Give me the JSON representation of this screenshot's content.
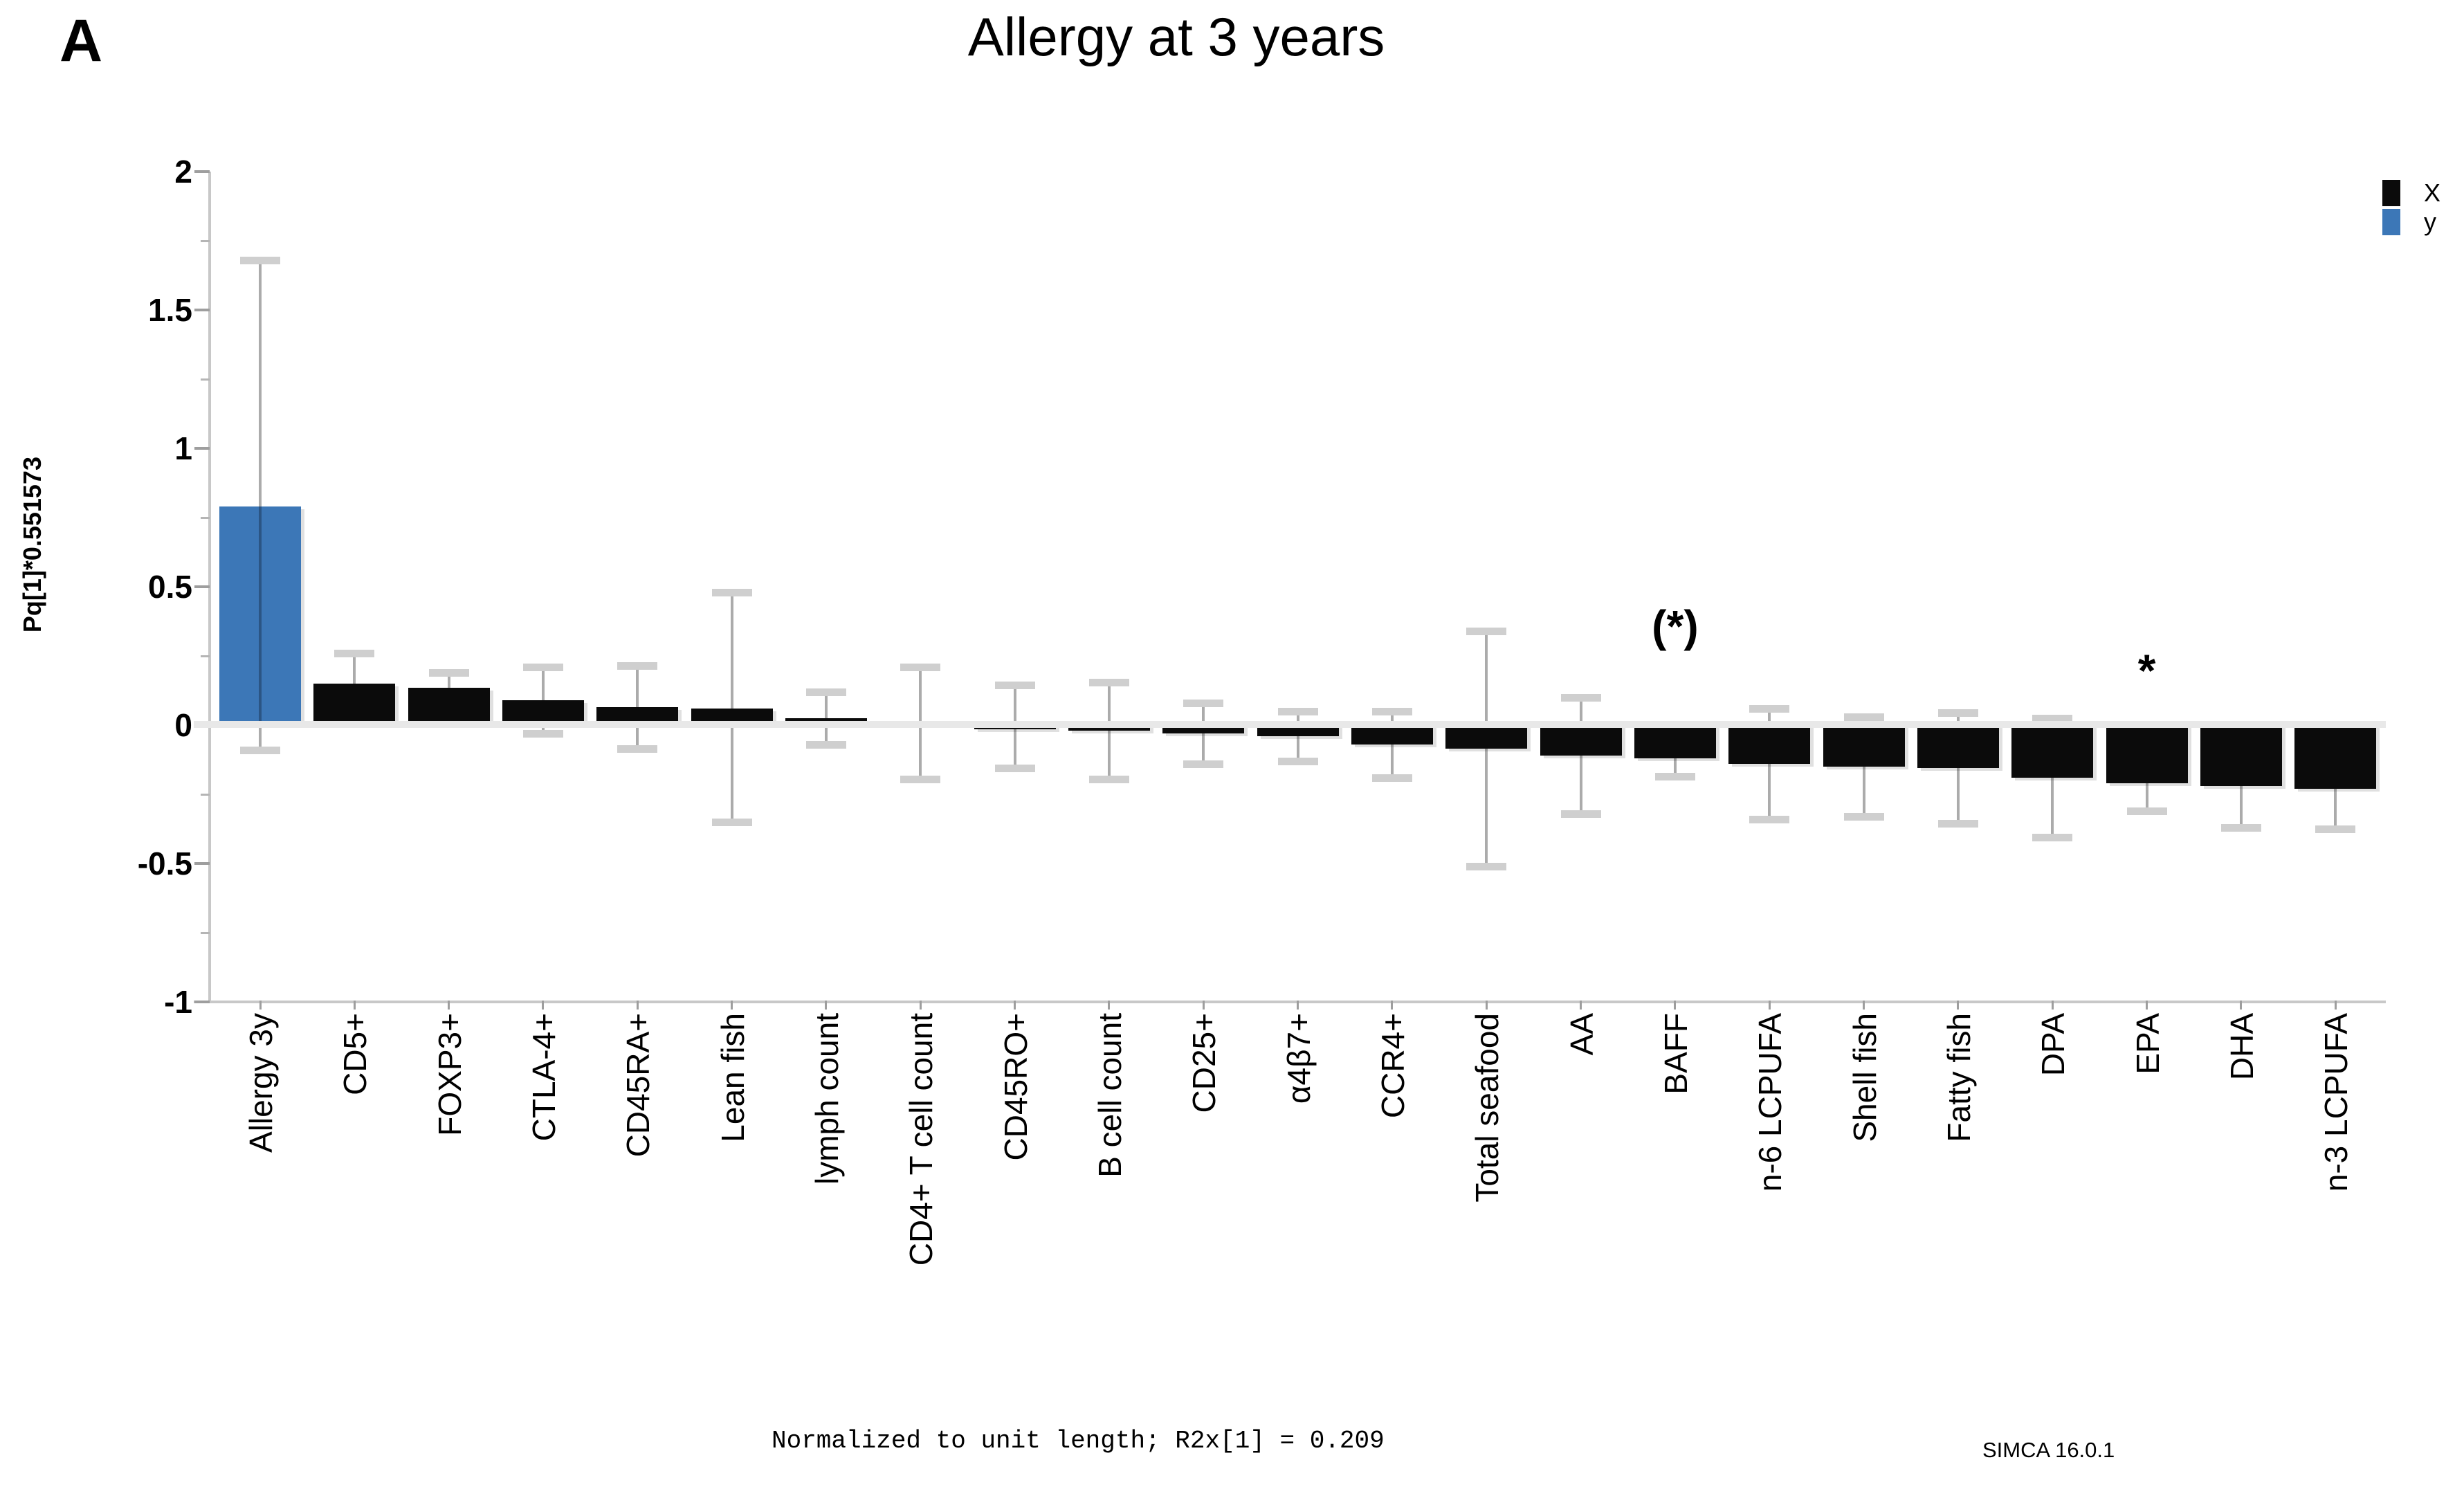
{
  "page": {
    "panel_label": "A"
  },
  "chart_data": {
    "type": "bar",
    "title": "Allergy at 3 years",
    "xlabel": "",
    "ylabel": "Pq[1]*0.551573",
    "ylim": [
      -1,
      2
    ],
    "yticks": [
      "2",
      "1.5",
      "1",
      "0.5",
      "0",
      "-0.5",
      "-1"
    ],
    "grid": false,
    "legend_position": "top-right",
    "categories": [
      "Allergy 3y",
      "CD5+",
      "FOXP3+",
      "CTLA-4+",
      "CD45RA+",
      "Lean fish",
      "lymph count",
      "CD4+ T cell count",
      "CD45RO+",
      "B cell count",
      "CD25+",
      "α4β7+",
      "CCR4+",
      "Total seafood",
      "AA",
      "BAFF",
      "n-6 LCPUFA",
      "Shell fish",
      "Fatty fish",
      "DPA",
      "EPA",
      "DHA",
      "n-3 LCPUFA"
    ],
    "values": [
      0.79,
      0.15,
      0.135,
      0.09,
      0.065,
      0.06,
      0.025,
      0.01,
      -0.015,
      -0.02,
      -0.03,
      -0.04,
      -0.07,
      -0.085,
      -0.11,
      -0.12,
      -0.14,
      -0.15,
      -0.155,
      -0.19,
      -0.21,
      -0.22,
      -0.23
    ],
    "error_low": [
      -0.09,
      0.04,
      0.08,
      -0.03,
      -0.085,
      -0.35,
      -0.07,
      -0.195,
      -0.155,
      -0.195,
      -0.14,
      -0.13,
      -0.19,
      -0.51,
      -0.32,
      -0.185,
      -0.34,
      -0.33,
      -0.355,
      -0.405,
      -0.31,
      -0.37,
      -0.375
    ],
    "error_high": [
      1.68,
      0.26,
      0.19,
      0.21,
      0.215,
      0.48,
      0.12,
      0.21,
      0.145,
      0.155,
      0.08,
      0.05,
      0.05,
      0.34,
      0.1,
      -0.055,
      0.06,
      0.03,
      0.045,
      0.025,
      -0.11,
      -0.07,
      -0.085
    ],
    "y_variable_index": 0,
    "colors": {
      "x_bar": "#0b0b0b",
      "y_bar": "#3c77b7"
    },
    "annotations": [
      {
        "category": "BAFF",
        "text": "(*)",
        "y": 0.33
      },
      {
        "category": "EPA",
        "text": "*",
        "y": 0.17
      }
    ],
    "legend": [
      {
        "label": "X",
        "color": "#0b0b0b"
      },
      {
        "label": "y",
        "color": "#3c77b7"
      }
    ],
    "footnote": "Normalized to unit length; R2x[1] = 0.209",
    "watermark": "SIMCA 16.0.1"
  }
}
